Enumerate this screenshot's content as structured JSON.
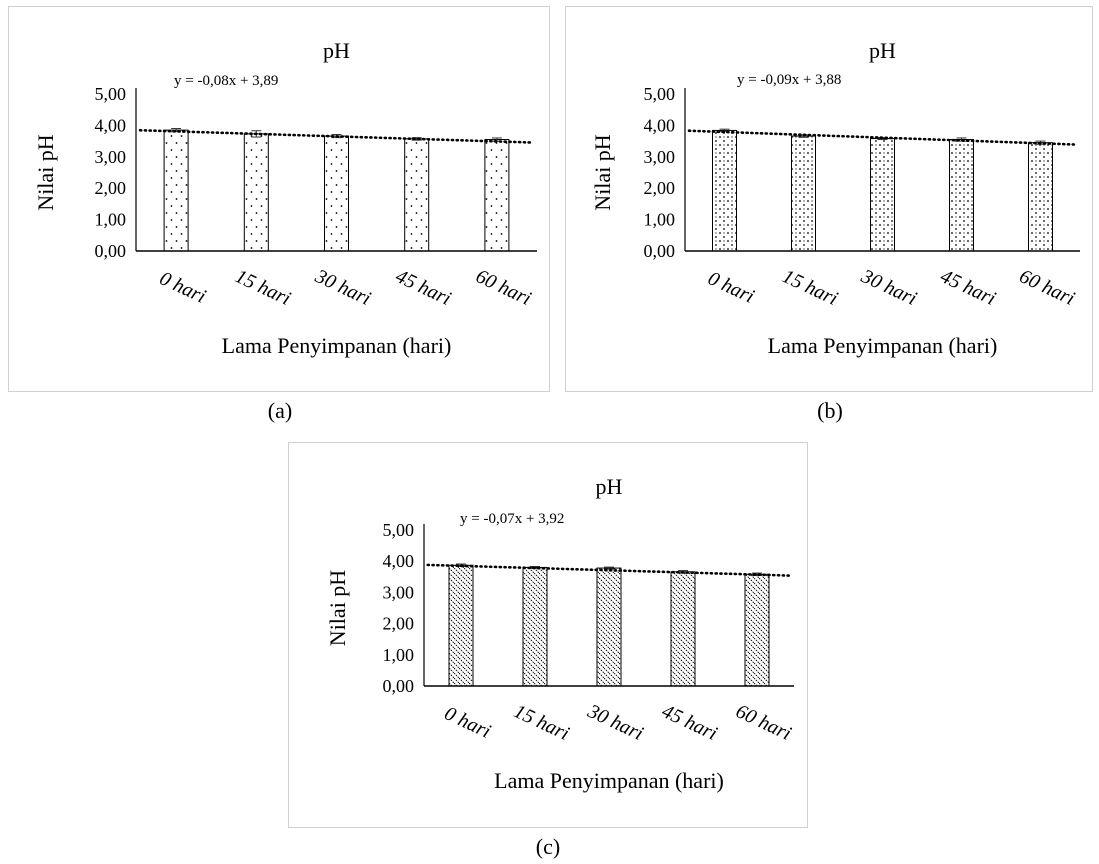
{
  "chart_data": [
    {
      "type": "bar",
      "panel_label": "(a)",
      "title": "pH",
      "xlabel": "Lama Penyimpanan (hari)",
      "ylabel": "Nilai pH",
      "categories": [
        "0 hari",
        "15 hari",
        "30 hari",
        "45 hari",
        "60 hari"
      ],
      "values": [
        3.85,
        3.73,
        3.66,
        3.57,
        3.55
      ],
      "errors": [
        0.05,
        0.1,
        0.05,
        0.04,
        0.05
      ],
      "ylim": [
        0,
        5
      ],
      "yticks": [
        "0,00",
        "1,00",
        "2,00",
        "3,00",
        "4,00",
        "5,00"
      ],
      "trendline": {
        "slope": -0.08,
        "intercept": 3.89,
        "label": "y = -0,08x + 3,89"
      },
      "pattern": "dots",
      "grid": false,
      "legend": "none"
    },
    {
      "type": "bar",
      "panel_label": "(b)",
      "title": "pH",
      "xlabel": "Lama Penyimpanan (hari)",
      "ylabel": "Nilai pH",
      "categories": [
        "0 hari",
        "15 hari",
        "30 hari",
        "45 hari",
        "60 hari"
      ],
      "values": [
        3.84,
        3.66,
        3.58,
        3.55,
        3.45
      ],
      "errors": [
        0.04,
        0.04,
        0.03,
        0.05,
        0.05
      ],
      "ylim": [
        0,
        5
      ],
      "yticks": [
        "0,00",
        "1,00",
        "2,00",
        "3,00",
        "4,00",
        "5,00"
      ],
      "trendline": {
        "slope": -0.09,
        "intercept": 3.88,
        "label": "y = -0,09x + 3,88"
      },
      "pattern": "diamonds",
      "grid": false,
      "legend": "none"
    },
    {
      "type": "bar",
      "panel_label": "(c)",
      "title": "pH",
      "xlabel": "Lama Penyimpanan (hari)",
      "ylabel": "Nilai pH",
      "categories": [
        "0 hari",
        "15 hari",
        "30 hari",
        "45 hari",
        "60 hari"
      ],
      "values": [
        3.87,
        3.8,
        3.78,
        3.66,
        3.58
      ],
      "errors": [
        0.04,
        0.03,
        0.03,
        0.04,
        0.04
      ],
      "ylim": [
        0,
        5
      ],
      "yticks": [
        "0,00",
        "1,00",
        "2,00",
        "3,00",
        "4,00",
        "5,00"
      ],
      "trendline": {
        "slope": -0.07,
        "intercept": 3.92,
        "label": "y = -0,07x + 3,92"
      },
      "pattern": "diagonal",
      "grid": false,
      "legend": "none"
    }
  ]
}
